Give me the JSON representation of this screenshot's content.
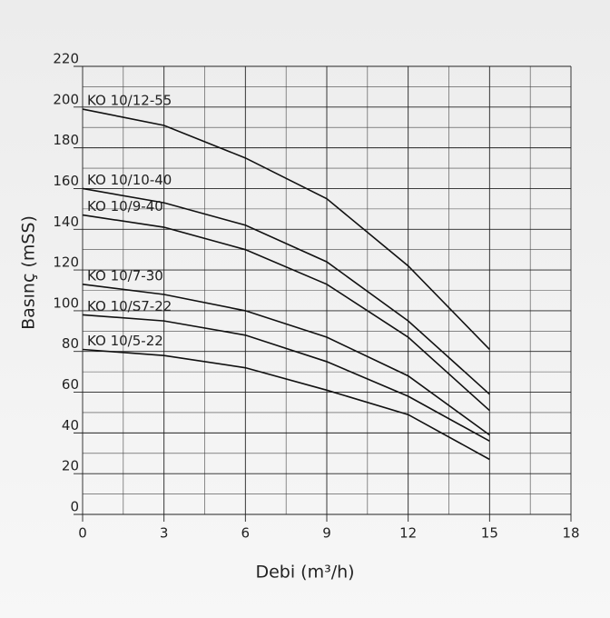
{
  "chart_data": {
    "type": "line",
    "x_label": "Debi (m³/h)",
    "y_label": "Basınç (mSS)",
    "x": [
      0,
      3,
      6,
      9,
      12,
      15
    ],
    "series": [
      {
        "name": "KO 10/12-55",
        "color": "#111111",
        "values": [
          199,
          191,
          175,
          155,
          122,
          81
        ]
      },
      {
        "name": "KO 10/10-40",
        "color": "#111111",
        "values": [
          160,
          153,
          142,
          124,
          95,
          59
        ]
      },
      {
        "name": "KO 10/9-40",
        "color": "#111111",
        "values": [
          147,
          141,
          130,
          113,
          87,
          51
        ]
      },
      {
        "name": "KO 10/7-30",
        "color": "#111111",
        "values": [
          113,
          108,
          100,
          87,
          68,
          39
        ]
      },
      {
        "name": "KO 10/S7-22",
        "color": "#111111",
        "values": [
          98,
          95,
          88,
          75,
          58,
          36
        ]
      },
      {
        "name": "KO 10/5-22",
        "color": "#111111",
        "values": [
          81,
          78,
          72,
          61,
          49,
          27
        ]
      }
    ],
    "xlim": [
      0,
      18
    ],
    "xticks": [
      0,
      3,
      6,
      9,
      12,
      15,
      18
    ],
    "ylim": [
      0,
      220
    ],
    "yticks": [
      0,
      20,
      40,
      60,
      80,
      100,
      120,
      140,
      160,
      180,
      200,
      220
    ],
    "xminor": [
      1.5,
      4.5,
      7.5,
      10.5,
      13.5,
      16.5
    ],
    "yminor": [
      10,
      30,
      50,
      70,
      90,
      110,
      130,
      150,
      170,
      190,
      210
    ],
    "grid": true
  }
}
